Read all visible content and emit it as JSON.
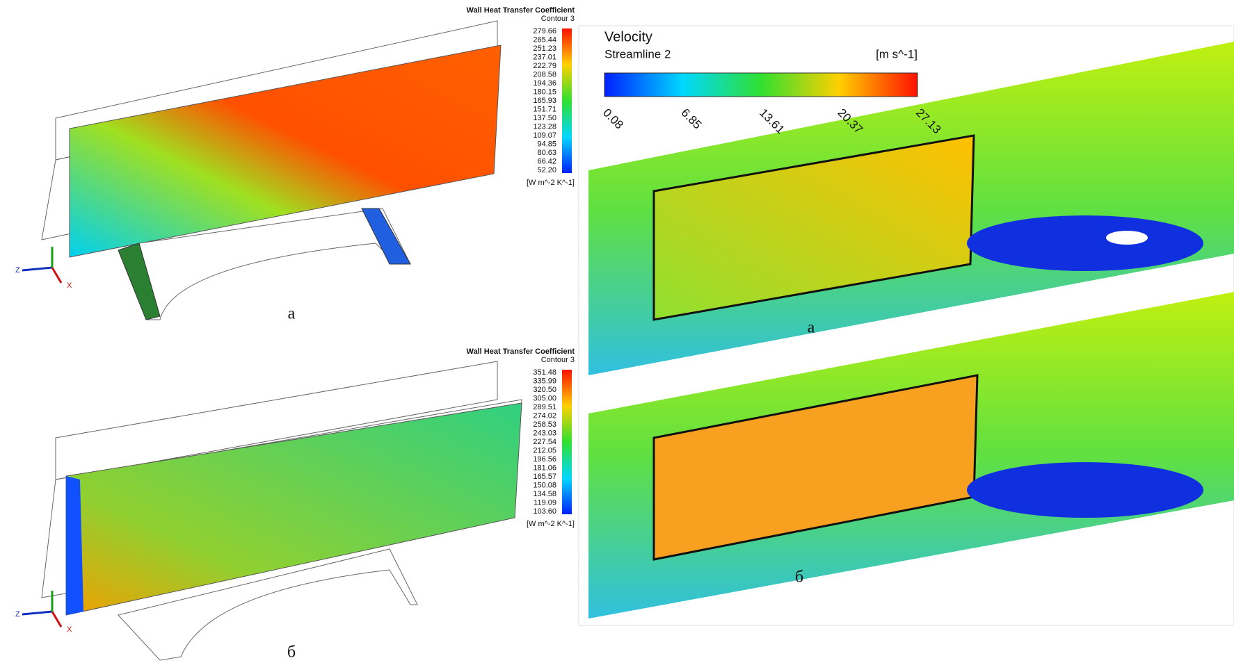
{
  "panels": [
    {
      "legend": {
        "title": "Wall Heat Transfer Coefficient",
        "subtitle": "Contour 3",
        "ticks": [
          "279.66",
          "265.44",
          "251.23",
          "237.01",
          "222.79",
          "208.58",
          "194.36",
          "180.15",
          "165.93",
          "151.71",
          "137.50",
          "123.28",
          "109.07",
          "94.85",
          "80.63",
          "66.42",
          "52.20"
        ],
        "unit": "[W m^-2 K^-1]"
      },
      "triad": {
        "z": "Z",
        "x": "X"
      },
      "label": "a"
    },
    {
      "legend": {
        "title": "Wall Heat Transfer Coefficient",
        "subtitle": "Contour 3",
        "ticks": [
          "351.48",
          "335.99",
          "320.50",
          "305.00",
          "289.51",
          "274.02",
          "258.53",
          "243.03",
          "227.54",
          "212.05",
          "196.56",
          "181.06",
          "165.57",
          "150.08",
          "134.58",
          "119.09",
          "103.60"
        ],
        "unit": "[W m^-2 K^-1]"
      },
      "triad": {
        "z": "Z",
        "x": "X"
      },
      "label": "б"
    }
  ],
  "velocity": {
    "title": "Velocity",
    "subtitle": "Streamline 2",
    "unit": "[m s^-1]",
    "ticks": [
      "0.08",
      "6.85",
      "13.61",
      "20.37",
      "27.13"
    ],
    "labels": [
      "a",
      "б"
    ]
  }
}
